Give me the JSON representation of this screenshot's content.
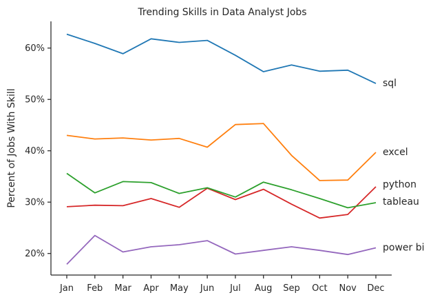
{
  "chart_data": {
    "type": "line",
    "title": "Trending Skills in Data Analyst Jobs",
    "xlabel": "",
    "ylabel": "Percent of Jobs With Skill",
    "categories": [
      "Jan",
      "Feb",
      "Mar",
      "Apr",
      "May",
      "Jun",
      "Jul",
      "Aug",
      "Sep",
      "Oct",
      "Nov",
      "Dec"
    ],
    "ylim": [
      15.8,
      65.2
    ],
    "yticks": [
      20,
      30,
      40,
      50,
      60
    ],
    "ytick_labels": [
      "20%",
      "30%",
      "40%",
      "50%",
      "60%"
    ],
    "grid": false,
    "legend": "direct labels at line ends",
    "series": [
      {
        "name": "sql",
        "color": "#1f77b4",
        "values": [
          62.7,
          60.9,
          58.9,
          61.8,
          61.1,
          61.5,
          58.6,
          55.4,
          56.7,
          55.5,
          55.7,
          53.1
        ]
      },
      {
        "name": "excel",
        "color": "#ff7f0e",
        "values": [
          43.0,
          42.3,
          42.5,
          42.1,
          42.4,
          40.7,
          45.1,
          45.3,
          39.1,
          34.2,
          34.3,
          39.7
        ]
      },
      {
        "name": "python",
        "color": "#d62728",
        "values": [
          29.1,
          29.4,
          29.3,
          30.7,
          29.0,
          32.7,
          30.5,
          32.5,
          29.6,
          26.9,
          27.6,
          33.0
        ]
      },
      {
        "name": "tableau",
        "color": "#2ca02c",
        "values": [
          35.6,
          31.8,
          34.0,
          33.8,
          31.7,
          32.8,
          31.0,
          33.9,
          32.4,
          30.7,
          28.9,
          29.9
        ]
      },
      {
        "name": "power bi",
        "color": "#9467bd",
        "values": [
          17.9,
          23.5,
          20.3,
          21.3,
          21.7,
          22.5,
          19.9,
          20.6,
          21.3,
          20.6,
          19.8,
          21.1
        ]
      }
    ]
  }
}
